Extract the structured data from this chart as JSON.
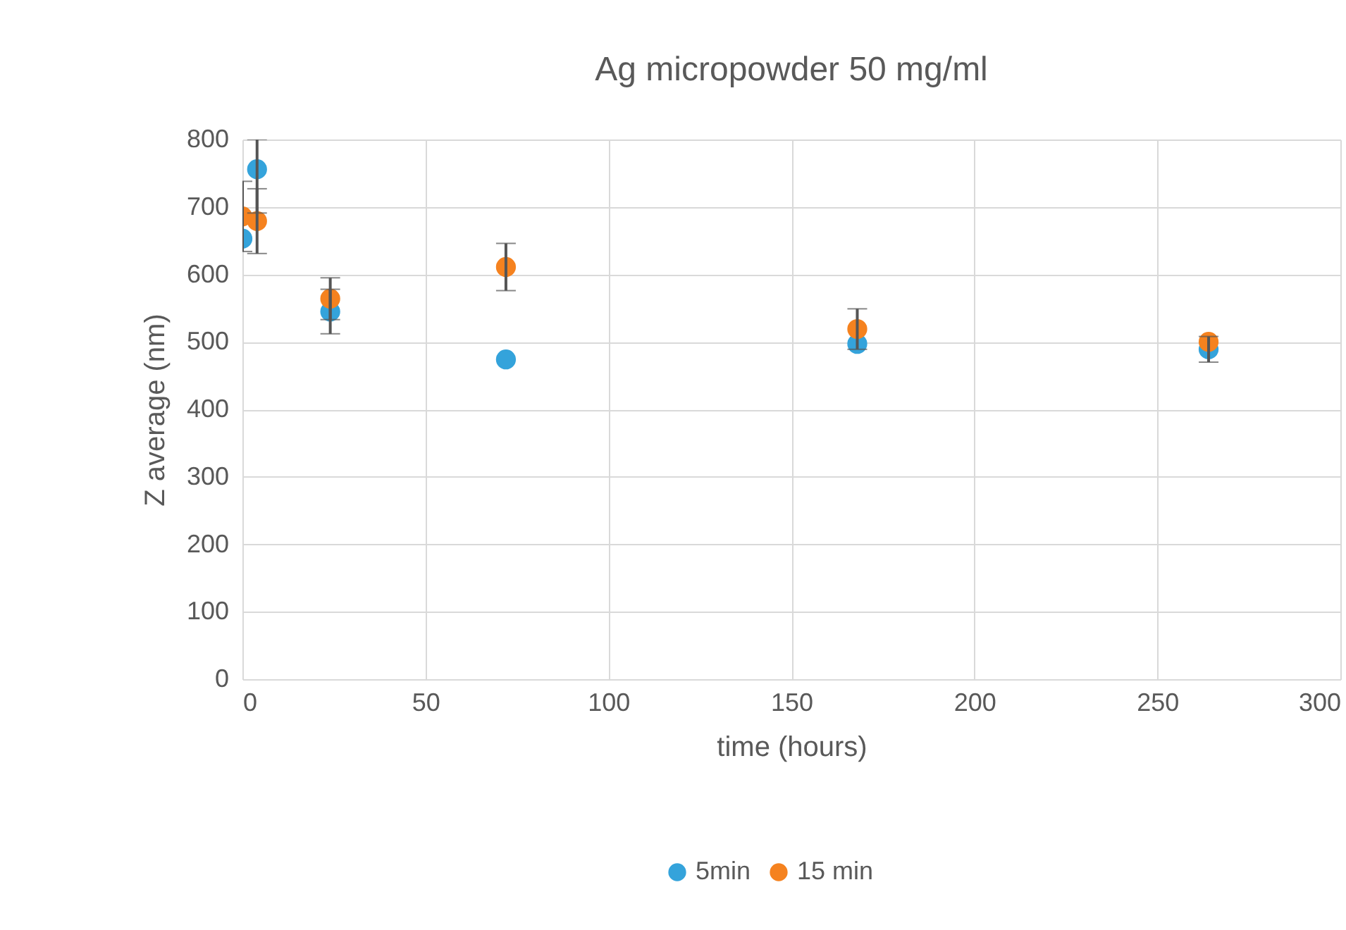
{
  "chart_data": {
    "type": "scatter",
    "title": "Ag micropowder 50 mg/ml",
    "xlabel": "time (hours)",
    "ylabel": "Z average (nm)",
    "xlim": [
      0,
      300
    ],
    "xticks": [
      0,
      50,
      100,
      150,
      200,
      250,
      300
    ],
    "ylim": [
      0,
      800
    ],
    "yticks": [
      0,
      100,
      200,
      300,
      400,
      500,
      600,
      700,
      800
    ],
    "grid": true,
    "legend": "bottom",
    "marker": "circle",
    "series": [
      {
        "name": "5min",
        "color": "#34a3db",
        "x": [
          0,
          4,
          24,
          72,
          168,
          264
        ],
        "values": [
          653,
          756,
          545,
          474,
          497,
          489
        ],
        "errors": [
          null,
          [
            691,
            800
          ],
          33,
          null,
          null,
          19
        ]
      },
      {
        "name": "15 min",
        "color": "#f5821f",
        "x": [
          0,
          4,
          24,
          72,
          168,
          264
        ],
        "values": [
          686,
          679,
          564,
          611,
          519,
          500
        ],
        "errors": [
          52,
          48,
          31,
          35,
          30,
          null
        ]
      }
    ]
  }
}
